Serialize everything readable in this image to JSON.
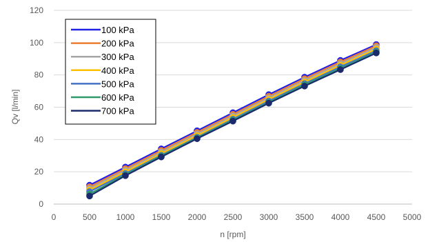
{
  "chart_data": {
    "type": "line",
    "title": "",
    "xlabel": "n [rpm]",
    "ylabel": "Qv [l/min]",
    "xlim": [
      0,
      5000
    ],
    "ylim": [
      0,
      120
    ],
    "xticks": [
      0,
      500,
      1000,
      1500,
      2000,
      2500,
      3000,
      3500,
      4000,
      4500,
      5000
    ],
    "yticks": [
      0,
      20,
      40,
      60,
      80,
      100,
      120
    ],
    "grid": "horizontal",
    "legend_position": "top-left",
    "markers": "circle",
    "x": [
      500,
      1000,
      1500,
      2000,
      2500,
      3000,
      3500,
      4000,
      4500
    ],
    "series": [
      {
        "name": "100 kPa",
        "color": "#1f1fe6",
        "values": [
          11.7,
          22.9,
          34.2,
          45.4,
          56.6,
          67.8,
          78.6,
          89.0,
          98.8
        ]
      },
      {
        "name": "200 kPa",
        "color": "#ed7d31",
        "values": [
          10.7,
          21.9,
          33.2,
          44.4,
          55.6,
          66.8,
          77.6,
          88.0,
          98.0
        ]
      },
      {
        "name": "300 kPa",
        "color": "#a5a5a5",
        "values": [
          9.7,
          20.9,
          32.2,
          43.4,
          54.6,
          65.8,
          76.6,
          87.0,
          97.0
        ]
      },
      {
        "name": "400 kPa",
        "color": "#ffc000",
        "values": [
          8.7,
          19.9,
          31.2,
          42.4,
          53.6,
          64.8,
          75.6,
          86.0,
          96.0
        ]
      },
      {
        "name": "500 kPa",
        "color": "#4472c4",
        "values": [
          7.7,
          18.9,
          30.2,
          41.4,
          52.6,
          63.8,
          74.6,
          85.0,
          95.0
        ]
      },
      {
        "name": "600 kPa",
        "color": "#2e9a6b",
        "values": [
          6.2,
          18.2,
          29.8,
          41.0,
          52.0,
          63.0,
          73.9,
          84.0,
          94.2
        ]
      },
      {
        "name": "700 kPa",
        "color": "#1a2a6c",
        "values": [
          5.0,
          17.6,
          29.2,
          40.5,
          51.4,
          62.5,
          73.1,
          83.3,
          93.6
        ]
      }
    ]
  }
}
